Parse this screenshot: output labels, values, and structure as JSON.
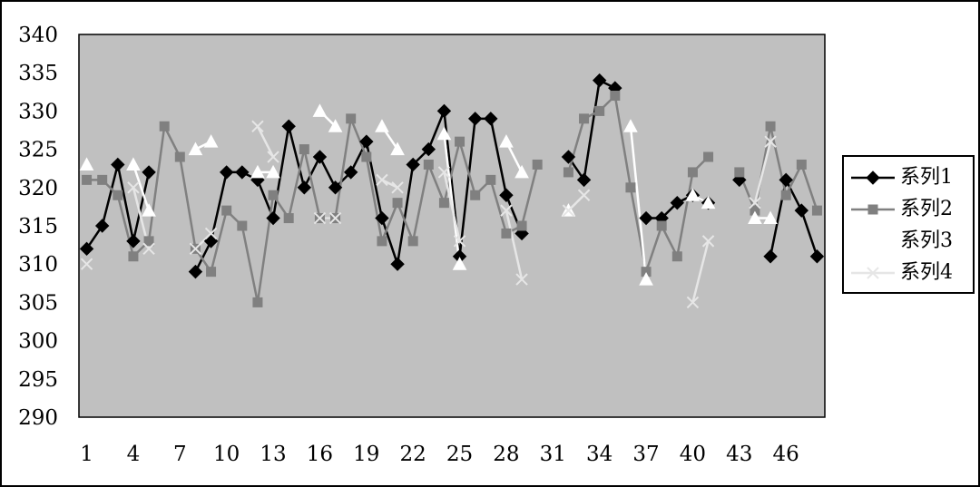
{
  "colors": {
    "plot_background": "#c0c0c0",
    "series_colors": [
      "#000000",
      "#808080",
      "#ffffff",
      "#e6e6e6"
    ]
  },
  "chart_data": {
    "type": "line",
    "title": "",
    "xlabel": "",
    "ylabel": "",
    "ylim": [
      290,
      340
    ],
    "y_ticks": [
      290,
      295,
      300,
      305,
      310,
      315,
      320,
      325,
      330,
      335,
      340
    ],
    "x": [
      1,
      2,
      3,
      4,
      5,
      6,
      7,
      8,
      9,
      10,
      11,
      12,
      13,
      14,
      15,
      16,
      17,
      18,
      19,
      20,
      21,
      22,
      23,
      24,
      25,
      26,
      27,
      28,
      29,
      30,
      31,
      32,
      33,
      34,
      35,
      36,
      37,
      38,
      39,
      40,
      41,
      42,
      43,
      44,
      45,
      46,
      47,
      48
    ],
    "x_tick_labels": [
      "1",
      "4",
      "7",
      "10",
      "13",
      "16",
      "19",
      "22",
      "25",
      "28",
      "31",
      "34",
      "37",
      "40",
      "43",
      "46"
    ],
    "grid": false,
    "legend_position": "right",
    "series": [
      {
        "name": "系列1",
        "marker": "diamond",
        "values": [
          312,
          315,
          323,
          313,
          322,
          null,
          null,
          309,
          313,
          322,
          322,
          321,
          316,
          328,
          320,
          324,
          320,
          322,
          326,
          316,
          310,
          323,
          325,
          330,
          311,
          329,
          329,
          319,
          314,
          null,
          null,
          324,
          321,
          334,
          333,
          null,
          316,
          316,
          318,
          319,
          318,
          null,
          321,
          null,
          311,
          321,
          317,
          311
        ]
      },
      {
        "name": "系列2",
        "marker": "square",
        "values": [
          321,
          321,
          319,
          311,
          313,
          328,
          324,
          312,
          309,
          317,
          315,
          305,
          319,
          316,
          325,
          316,
          316,
          329,
          324,
          313,
          318,
          313,
          323,
          318,
          326,
          319,
          321,
          314,
          315,
          323,
          null,
          322,
          329,
          330,
          332,
          320,
          309,
          315,
          311,
          322,
          324,
          null,
          322,
          317,
          328,
          319,
          323,
          317
        ]
      },
      {
        "name": "系列3",
        "marker": "triangle",
        "values": [
          323,
          null,
          null,
          323,
          317,
          null,
          null,
          325,
          326,
          null,
          null,
          322,
          322,
          null,
          null,
          330,
          328,
          null,
          null,
          328,
          325,
          null,
          null,
          327,
          310,
          null,
          null,
          326,
          322,
          null,
          null,
          317,
          null,
          null,
          null,
          328,
          308,
          null,
          null,
          319,
          318,
          null,
          null,
          316,
          316,
          null,
          null,
          null
        ]
      },
      {
        "name": "系列4",
        "marker": "x",
        "values": [
          310,
          null,
          null,
          320,
          312,
          null,
          null,
          312,
          314,
          null,
          null,
          328,
          324,
          null,
          null,
          316,
          316,
          null,
          null,
          321,
          320,
          null,
          null,
          322,
          313,
          null,
          null,
          317,
          308,
          null,
          null,
          317,
          319,
          null,
          null,
          null,
          null,
          null,
          null,
          305,
          313,
          null,
          null,
          318,
          326,
          null,
          null,
          null
        ]
      }
    ]
  }
}
